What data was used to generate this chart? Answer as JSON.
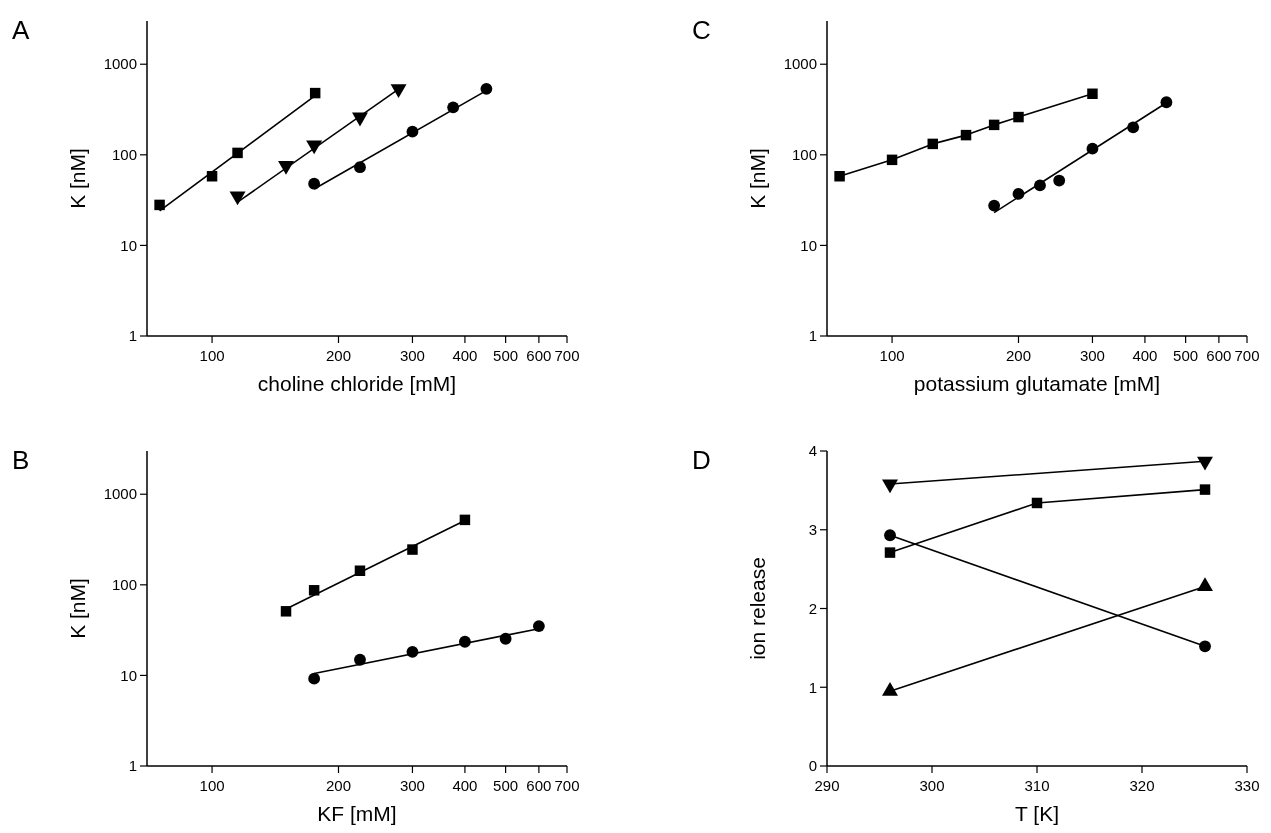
{
  "chart_data": [
    {
      "type": "scatter",
      "title": "A",
      "xlabel": "choline chloride [mM]",
      "ylabel": "K [nM]",
      "log": "xy",
      "xlim": [
        70,
        700
      ],
      "xticks": [
        100,
        200,
        300,
        400,
        500,
        600,
        700
      ],
      "ylim": [
        1,
        3000
      ],
      "yticks": [
        1,
        10,
        100,
        1000
      ],
      "grid": false,
      "series": [
        {
          "marker": "square",
          "color": "#000000",
          "x": [
            75,
            100,
            115,
            176
          ],
          "values": [
            28,
            58,
            105,
            480
          ]
        },
        {
          "type": "line",
          "marker": "none",
          "color": "#000000",
          "x": [
            75,
            176
          ],
          "values": [
            24,
            450
          ]
        },
        {
          "marker": "triangle-down",
          "color": "#000000",
          "x": [
            115,
            150,
            175,
            225,
            278
          ],
          "values": [
            35,
            76,
            128,
            260,
            535
          ]
        },
        {
          "type": "line",
          "marker": "none",
          "color": "#000000",
          "x": [
            115,
            284
          ],
          "values": [
            30,
            570
          ]
        },
        {
          "marker": "circle",
          "color": "#000000",
          "x": [
            175,
            225,
            300,
            375,
            450
          ],
          "values": [
            48,
            73,
            180,
            334,
            535
          ]
        },
        {
          "type": "line",
          "marker": "none",
          "color": "#000000",
          "x": [
            175,
            454
          ],
          "values": [
            42,
            525
          ]
        }
      ]
    },
    {
      "type": "scatter",
      "title": "C",
      "xlabel": "potassium glutamate [mM]",
      "ylabel": "K [nM]",
      "log": "xy",
      "xlim": [
        70,
        700
      ],
      "xticks": [
        100,
        200,
        300,
        400,
        500,
        600,
        700
      ],
      "ylim": [
        1,
        3000
      ],
      "yticks": [
        1,
        10,
        100,
        1000
      ],
      "grid": false,
      "series": [
        {
          "type": "line",
          "marker": "square",
          "color": "#000000",
          "x": [
            75,
            100,
            125,
            150,
            175,
            200,
            300
          ],
          "values": [
            58,
            88,
            132,
            165,
            214,
            261,
            472
          ]
        },
        {
          "marker": "circle",
          "color": "#000000",
          "x": [
            175,
            200,
            225,
            250,
            300,
            375,
            450
          ],
          "values": [
            27.5,
            37,
            46,
            52,
            117,
            201,
            380
          ]
        },
        {
          "type": "line",
          "marker": "none",
          "color": "#000000",
          "x": [
            175,
            460
          ],
          "values": [
            23,
            400
          ]
        }
      ]
    },
    {
      "type": "scatter",
      "title": "B",
      "xlabel": "KF [mM]",
      "ylabel": "K [nM]",
      "log": "xy",
      "xlim": [
        70,
        700
      ],
      "xticks": [
        100,
        200,
        300,
        400,
        500,
        600,
        700
      ],
      "ylim": [
        1,
        3000
      ],
      "yticks": [
        1,
        10,
        100,
        1000
      ],
      "grid": false,
      "series": [
        {
          "marker": "square",
          "color": "#000000",
          "x": [
            150,
            175,
            225,
            300,
            400
          ],
          "values": [
            51,
            87,
            143,
            245,
            521
          ]
        },
        {
          "type": "line",
          "marker": "none",
          "color": "#000000",
          "x": [
            150,
            400
          ],
          "values": [
            54,
            512
          ]
        },
        {
          "marker": "circle",
          "color": "#000000",
          "x": [
            175,
            225,
            300,
            400,
            500,
            600
          ],
          "values": [
            9.2,
            14.9,
            18.2,
            23.5,
            25.4,
            35
          ]
        },
        {
          "type": "line",
          "marker": "none",
          "color": "#000000",
          "x": [
            175,
            600
          ],
          "values": [
            10.5,
            32.8
          ]
        }
      ]
    },
    {
      "type": "line",
      "title": "D",
      "xlabel": "T [K]",
      "ylabel": "ion release",
      "xlim": [
        290,
        330
      ],
      "xticks": [
        290,
        300,
        310,
        320,
        330
      ],
      "ylim": [
        0,
        4
      ],
      "yticks": [
        0,
        1,
        2,
        3,
        4
      ],
      "grid": false,
      "series": [
        {
          "marker": "triangle-down",
          "color": "#000000",
          "x": [
            296,
            326
          ],
          "values": [
            3.58,
            3.87
          ]
        },
        {
          "marker": "square",
          "color": "#000000",
          "x": [
            296,
            310,
            326
          ],
          "values": [
            2.71,
            3.34,
            3.51
          ]
        },
        {
          "marker": "circle",
          "color": "#000000",
          "x": [
            296,
            326
          ],
          "values": [
            2.93,
            1.52
          ]
        },
        {
          "marker": "triangle",
          "color": "#000000",
          "x": [
            296,
            326
          ],
          "values": [
            0.95,
            2.28
          ]
        }
      ]
    }
  ]
}
